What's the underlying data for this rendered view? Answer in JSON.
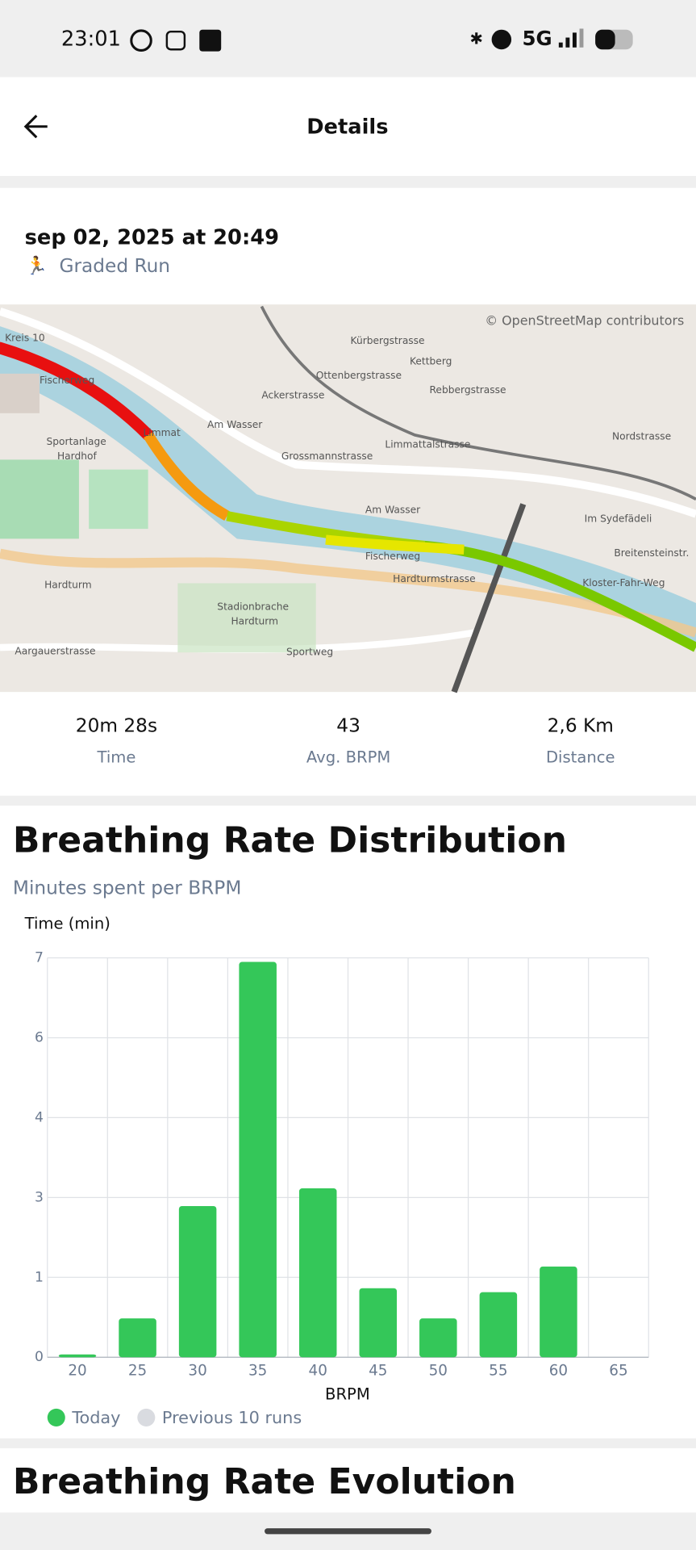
{
  "status_bar": {
    "time": "23:01",
    "network": "5G"
  },
  "header": {
    "title": "Details"
  },
  "activity": {
    "date": "sep 02, 2025 at 20:49",
    "type": "Graded Run"
  },
  "map": {
    "attribution": "© OpenStreetMap contributors",
    "labels": [
      "Kreis 10",
      "Fischerweg",
      "Sportanlage",
      "Hardhof",
      "Limmat",
      "Am Wasser",
      "Ackerstrasse",
      "Grossmannstrasse",
      "Ottenbergstrasse",
      "Kürbergstrasse",
      "Kettberg",
      "Rebbergstrasse",
      "Limmattalstrasse",
      "Nordstrasse",
      "Am Wasser",
      "Im Sydefädeli",
      "Breitensteinstr.",
      "Kloster-Fahr-Weg",
      "Fischerweg",
      "Hardturmstrasse",
      "Stadionbrache",
      "Hardturm",
      "Hardturm",
      "Aargauerstrasse",
      "Sportweg"
    ]
  },
  "stats": [
    {
      "value": "20m 28s",
      "label": "Time"
    },
    {
      "value": "43",
      "label": "Avg. BRPM"
    },
    {
      "value": "2,6 Km",
      "label": "Distance"
    }
  ],
  "chart_data": {
    "type": "bar",
    "title": "Breathing Rate Distribution",
    "subtitle": "Minutes spent per BRPM",
    "y_label": "Time (min)",
    "x_label": "BRPM",
    "categories": [
      "20",
      "25",
      "30",
      "35",
      "40",
      "45",
      "50",
      "55",
      "60",
      "65"
    ],
    "series": [
      {
        "name": "Today",
        "color": "#34c759",
        "values": [
          0.05,
          0.68,
          2.65,
          6.93,
          2.96,
          1.21,
          0.68,
          1.14,
          1.59,
          0
        ]
      },
      {
        "name": "Previous 10 runs",
        "color": "#d9dbe0",
        "values": [
          null,
          null,
          null,
          null,
          null,
          null,
          null,
          null,
          null,
          null
        ]
      }
    ],
    "ylim": [
      0,
      7
    ],
    "yticks": [
      0,
      {
        "value": 1.4,
        "label": "1"
      },
      {
        "value": 2.8,
        "label": "3"
      },
      {
        "value": 4.2,
        "label": "4"
      },
      {
        "value": 5.6,
        "label": "6"
      },
      7
    ],
    "grid": true,
    "legend": "bottom-left"
  },
  "next_section": {
    "title": "Breathing Rate Evolution"
  }
}
